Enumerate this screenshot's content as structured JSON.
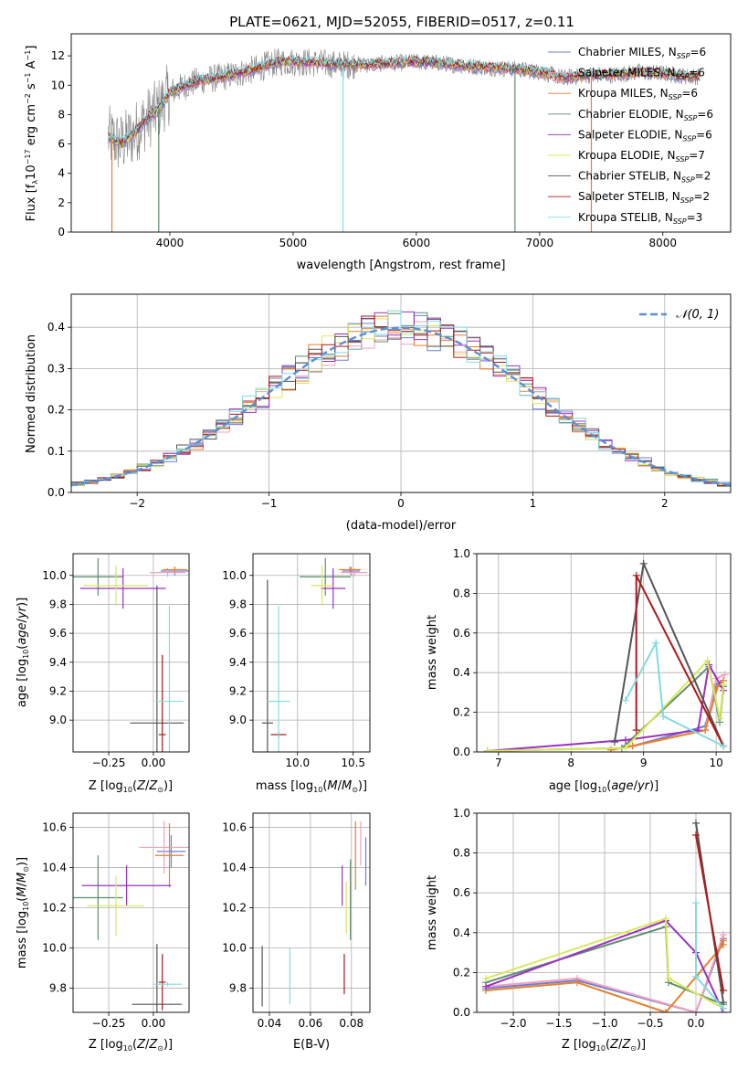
{
  "figure": {
    "title": "PLATE=0621, MJD=52055, FIBERID=0517, z=0.11"
  },
  "colors": {
    "Chabrier MILES": "#6f7fd0",
    "Salpeter MILES": "#f2a0c0",
    "Kroupa MILES": "#e8802c",
    "Chabrier ELODIE": "#5f8f6f",
    "Salpeter ELODIE": "#9b30c0",
    "Kroupa ELODIE": "#d8e85a",
    "Chabrier STELIB": "#555555",
    "Salpeter STELIB": "#b01818",
    "Kroupa STELIB": "#82dce0",
    "normal": "#5b8fd4"
  },
  "chart_data": [
    {
      "id": "spectrum",
      "type": "line",
      "title": "PLATE=0621, MJD=52055, FIBERID=0517, z=0.11",
      "xlabel": "wavelength [Angstrom, rest frame]",
      "ylabel": "Flux [fλ10⁻¹⁷ erg cm⁻² s⁻¹ A⁻¹]",
      "xlim": [
        3200,
        8550
      ],
      "ylim": [
        0,
        13.5
      ],
      "xticks": [
        4000,
        5000,
        6000,
        7000,
        8000
      ],
      "yticks": [
        0,
        2,
        4,
        6,
        8,
        10,
        12
      ],
      "grid": false,
      "legend_position": "right",
      "data_continuum": {
        "x": [
          3500,
          3600,
          3700,
          3800,
          3900,
          4000,
          4100,
          4200,
          4300,
          4400,
          4500,
          4600,
          4700,
          4800,
          4900,
          5000,
          5200,
          5400,
          5600,
          5800,
          6000,
          6200,
          6400,
          6600,
          6800,
          7000,
          7200,
          7400,
          7600,
          7800,
          8000,
          8200,
          8300
        ],
        "y": [
          6.5,
          6.0,
          6.6,
          7.6,
          8.3,
          9.5,
          9.9,
          10.2,
          10.4,
          10.5,
          10.7,
          10.9,
          11.1,
          11.4,
          11.6,
          11.6,
          11.5,
          11.4,
          11.4,
          11.5,
          11.6,
          11.5,
          11.3,
          11.2,
          11.1,
          10.9,
          10.5,
          10.7,
          10.7,
          10.9,
          10.8,
          10.6,
          10.6
        ]
      },
      "series": [
        {
          "name": "Chabrier MILES, N_SSP=6",
          "label": "Chabrier MILES, N",
          "sub": "SSP",
          "suffix": "=6",
          "color": "#6f7fd0"
        },
        {
          "name": "Salpeter MILES, N_SSP=6",
          "label": "Salpeter MILES, N",
          "sub": "SSP",
          "suffix": "=6",
          "color": "#f2a0c0"
        },
        {
          "name": "Kroupa MILES, N_SSP=6",
          "label": "Kroupa MILES, N",
          "sub": "SSP",
          "suffix": "=6",
          "color": "#e8802c"
        },
        {
          "name": "Chabrier ELODIE, N_SSP=6",
          "label": "Chabrier ELODIE, N",
          "sub": "SSP",
          "suffix": "=6",
          "color": "#5f8f6f"
        },
        {
          "name": "Salpeter ELODIE, N_SSP=6",
          "label": "Salpeter ELODIE, N",
          "sub": "SSP",
          "suffix": "=6",
          "color": "#9b30c0"
        },
        {
          "name": "Kroupa ELODIE, N_SSP=7",
          "label": "Kroupa ELODIE, N",
          "sub": "SSP",
          "suffix": "=7",
          "color": "#d8e85a"
        },
        {
          "name": "Chabrier STELIB, N_SSP=2",
          "label": "Chabrier STELIB, N",
          "sub": "SSP",
          "suffix": "=2",
          "color": "#555555"
        },
        {
          "name": "Salpeter STELIB, N_SSP=2",
          "label": "Salpeter STELIB, N",
          "sub": "SSP",
          "suffix": "=2",
          "color": "#b01818"
        },
        {
          "name": "Kroupa STELIB, N_SSP=3",
          "label": "Kroupa STELIB, N",
          "sub": "SSP",
          "suffix": "=3",
          "color": "#82dce0"
        }
      ]
    },
    {
      "id": "residuals",
      "type": "histogram",
      "xlabel": "(data-model)/error",
      "ylabel": "Normed distribution",
      "xlim": [
        -2.5,
        2.5
      ],
      "ylim": [
        0,
        0.48
      ],
      "xticks": [
        -2,
        -1,
        0,
        1,
        2
      ],
      "yticks": [
        0.0,
        0.1,
        0.2,
        0.3,
        0.4
      ],
      "grid": true,
      "legend": "𝒩(0, 1)",
      "legend_position": "top-right",
      "bin_width": 0.1,
      "bin_start": -2.5,
      "reference_curve": "N(0,1)"
    },
    {
      "id": "age_vs_Z",
      "type": "errorbar",
      "xlabel": "Z [log10(Z/Z⊙)]",
      "ylabel": "age  [log10(age/yr)]",
      "xlim": [
        -0.45,
        0.2
      ],
      "ylim": [
        8.78,
        10.15
      ],
      "xticks": [
        -0.25,
        0.0
      ],
      "yticks": [
        9.0,
        9.2,
        9.4,
        9.6,
        9.8,
        10.0
      ],
      "grid": true,
      "points": [
        {
          "series": "Chabrier MILES",
          "x": 0.12,
          "y": 10.03,
          "xerr": 0.08,
          "yerr": 0.03
        },
        {
          "series": "Salpeter MILES",
          "x": 0.08,
          "y": 10.02,
          "xerr": 0.1,
          "yerr": 0.03
        },
        {
          "series": "Kroupa MILES",
          "x": 0.12,
          "y": 10.04,
          "xerr": 0.07,
          "yerr": 0.02
        },
        {
          "series": "Chabrier ELODIE",
          "x": -0.31,
          "y": 9.99,
          "xerr": 0.14,
          "yerr": 0.13
        },
        {
          "series": "Salpeter ELODIE",
          "x": -0.17,
          "y": 9.91,
          "xerr": 0.24,
          "yerr": 0.14
        },
        {
          "series": "Kroupa ELODIE",
          "x": -0.21,
          "y": 9.93,
          "xerr": 0.18,
          "yerr": 0.14
        },
        {
          "series": "Chabrier STELIB",
          "x": 0.02,
          "y": 8.98,
          "xerr": 0.15,
          "yerr": 0.95
        },
        {
          "series": "Salpeter STELIB",
          "x": 0.05,
          "y": 8.9,
          "xerr": 0.02,
          "yerr": 0.55
        },
        {
          "series": "Kroupa STELIB",
          "x": 0.09,
          "y": 9.13,
          "xerr": 0.08,
          "yerr": 0.66
        }
      ]
    },
    {
      "id": "age_vs_mass",
      "type": "errorbar",
      "xlabel": "mass [log10(M/M⊙)]",
      "ylabel": "",
      "xlim": [
        9.6,
        10.65
      ],
      "ylim": [
        8.78,
        10.15
      ],
      "xticks": [
        10.0,
        10.5
      ],
      "yticks": [
        9.0,
        9.2,
        9.4,
        9.6,
        9.8,
        10.0
      ],
      "grid": true,
      "points": [
        {
          "series": "Chabrier MILES",
          "x": 10.48,
          "y": 10.03,
          "xerr": 0.08,
          "yerr": 0.03
        },
        {
          "series": "Salpeter MILES",
          "x": 10.51,
          "y": 10.02,
          "xerr": 0.12,
          "yerr": 0.03
        },
        {
          "series": "Kroupa MILES",
          "x": 10.47,
          "y": 10.04,
          "xerr": 0.1,
          "yerr": 0.02
        },
        {
          "series": "Chabrier ELODIE",
          "x": 10.25,
          "y": 9.99,
          "xerr": 0.23,
          "yerr": 0.13
        },
        {
          "series": "Salpeter ELODIE",
          "x": 10.32,
          "y": 9.91,
          "xerr": 0.11,
          "yerr": 0.14
        },
        {
          "series": "Kroupa ELODIE",
          "x": 10.22,
          "y": 9.93,
          "xerr": 0.1,
          "yerr": 0.14
        },
        {
          "series": "Chabrier STELIB",
          "x": 9.73,
          "y": 8.98,
          "xerr": 0.05,
          "yerr": 0.99
        },
        {
          "series": "Salpeter STELIB",
          "x": 9.83,
          "y": 8.9,
          "xerr": 0.07,
          "yerr": 0.02
        },
        {
          "series": "Kroupa STELIB",
          "x": 9.83,
          "y": 9.13,
          "xerr": 0.1,
          "yerr": 0.66
        }
      ]
    },
    {
      "id": "weight_vs_age",
      "type": "line",
      "xlabel": "age  [log10(age/yr)]",
      "ylabel": "mass weight",
      "xlim": [
        6.7,
        10.2
      ],
      "ylim": [
        0,
        1.0
      ],
      "xticks": [
        7,
        8,
        9,
        10
      ],
      "yticks": [
        0.0,
        0.2,
        0.4,
        0.6,
        0.8,
        1.0
      ],
      "grid": true,
      "series": [
        {
          "name": "Chabrier MILES",
          "x": [
            8.55,
            8.85,
            9.85,
            10.0,
            10.1
          ],
          "y": [
            0.01,
            0.03,
            0.13,
            0.34,
            0.36
          ]
        },
        {
          "name": "Salpeter MILES",
          "x": [
            8.55,
            8.85,
            9.85,
            10.0,
            10.12
          ],
          "y": [
            0.01,
            0.03,
            0.11,
            0.37,
            0.39
          ]
        },
        {
          "name": "Kroupa MILES",
          "x": [
            8.55,
            8.85,
            9.85,
            10.02,
            10.1
          ],
          "y": [
            0.01,
            0.03,
            0.11,
            0.33,
            0.36
          ]
        },
        {
          "name": "Chabrier ELODIE",
          "x": [
            6.85,
            8.7,
            9.9,
            10.05,
            10.1
          ],
          "y": [
            0.005,
            0.02,
            0.43,
            0.15,
            0.33
          ]
        },
        {
          "name": "Salpeter ELODIE",
          "x": [
            6.85,
            8.75,
            9.75,
            9.9,
            10.1
          ],
          "y": [
            0.005,
            0.06,
            0.11,
            0.44,
            0.31
          ]
        },
        {
          "name": "Kroupa ELODIE",
          "x": [
            6.85,
            8.75,
            9.88,
            10.05,
            10.1
          ],
          "y": [
            0.005,
            0.02,
            0.46,
            0.17,
            0.34
          ]
        },
        {
          "name": "Chabrier STELIB",
          "x": [
            8.6,
            9.0,
            10.1
          ],
          "y": [
            0.05,
            0.95,
            0.03
          ]
        },
        {
          "name": "Salpeter STELIB",
          "x": [
            8.9,
            8.9,
            10.1
          ],
          "y": [
            0.11,
            0.89,
            0.03
          ]
        },
        {
          "name": "Kroupa STELIB",
          "x": [
            8.75,
            9.17,
            9.27,
            10.1
          ],
          "y": [
            0.26,
            0.55,
            0.18,
            0.03
          ]
        }
      ]
    },
    {
      "id": "mass_vs_Z",
      "type": "errorbar",
      "xlabel": "Z [log10(Z/Z⊙)]",
      "ylabel": "mass [log10(M/M⊙)]",
      "xlim": [
        -0.45,
        0.2
      ],
      "ylim": [
        9.68,
        10.67
      ],
      "xticks": [
        -0.25,
        0.0
      ],
      "yticks": [
        9.8,
        10.0,
        10.2,
        10.4,
        10.6
      ],
      "grid": true,
      "points": [
        {
          "series": "Chabrier MILES",
          "x": 0.1,
          "y": 10.48,
          "xerr": 0.08,
          "yerr": 0.08
        },
        {
          "series": "Salpeter MILES",
          "x": 0.06,
          "y": 10.5,
          "xerr": 0.14,
          "yerr": 0.13
        },
        {
          "series": "Kroupa MILES",
          "x": 0.09,
          "y": 10.46,
          "xerr": 0.08,
          "yerr": 0.16
        },
        {
          "series": "Chabrier ELODIE",
          "x": -0.31,
          "y": 10.25,
          "xerr": 0.14,
          "yerr": 0.21
        },
        {
          "series": "Salpeter ELODIE",
          "x": -0.15,
          "y": 10.31,
          "xerr": 0.25,
          "yerr": 0.1
        },
        {
          "series": "Kroupa ELODIE",
          "x": -0.21,
          "y": 10.21,
          "xerr": 0.16,
          "yerr": 0.15
        },
        {
          "series": "Chabrier STELIB",
          "x": 0.02,
          "y": 9.72,
          "xerr": 0.14,
          "yerr": 0.3
        },
        {
          "series": "Salpeter STELIB",
          "x": 0.05,
          "y": 9.83,
          "xerr": 0.02,
          "yerr": 0.14
        },
        {
          "series": "Kroupa STELIB",
          "x": 0.08,
          "y": 9.82,
          "xerr": 0.08,
          "yerr": 0.01
        }
      ]
    },
    {
      "id": "mass_vs_ebv",
      "type": "errorbar",
      "xlabel": "E(B-V)",
      "ylabel": "",
      "xlim": [
        0.032,
        0.089
      ],
      "ylim": [
        9.68,
        10.67
      ],
      "xticks": [
        0.04,
        0.06,
        0.08
      ],
      "yticks": [
        9.8,
        10.0,
        10.2,
        10.4,
        10.6
      ],
      "grid": true,
      "points": [
        {
          "series": "Chabrier MILES",
          "x": 0.087,
          "y": 10.43,
          "xerr": 0.0,
          "yerr": 0.12
        },
        {
          "series": "Salpeter MILES",
          "x": 0.0845,
          "y": 10.52,
          "xerr": 0.0,
          "yerr": 0.11
        },
        {
          "series": "Kroupa MILES",
          "x": 0.082,
          "y": 10.46,
          "xerr": 0.0,
          "yerr": 0.17
        },
        {
          "series": "Chabrier ELODIE",
          "x": 0.0795,
          "y": 10.24,
          "xerr": 0.0,
          "yerr": 0.2
        },
        {
          "series": "Salpeter ELODIE",
          "x": 0.0755,
          "y": 10.31,
          "xerr": 0.0,
          "yerr": 0.1
        },
        {
          "series": "Kroupa ELODIE",
          "x": 0.0775,
          "y": 10.2,
          "xerr": 0.0,
          "yerr": 0.13
        },
        {
          "series": "Chabrier STELIB",
          "x": 0.0365,
          "y": 9.86,
          "xerr": 0.0,
          "yerr": 0.15
        },
        {
          "series": "Salpeter STELIB",
          "x": 0.0765,
          "y": 9.87,
          "xerr": 0.0,
          "yerr": 0.1
        },
        {
          "series": "Kroupa STELIB",
          "x": 0.05,
          "y": 9.86,
          "xerr": 0.0,
          "yerr": 0.14
        }
      ]
    },
    {
      "id": "weight_vs_Z",
      "type": "line",
      "xlabel": "Z [log10(Z/Z⊙)]",
      "ylabel": "mass weight",
      "xlim": [
        -2.4,
        0.38
      ],
      "ylim": [
        0,
        1.0
      ],
      "xticks": [
        -2.0,
        -1.5,
        -1.0,
        -0.5,
        0.0
      ],
      "yticks": [
        0.0,
        0.2,
        0.4,
        0.6,
        0.8,
        1.0
      ],
      "grid": true,
      "series": [
        {
          "name": "Chabrier MILES",
          "x": [
            -2.3,
            -1.3,
            0.0,
            0.3
          ],
          "y": [
            0.12,
            0.16,
            0.0,
            0.37
          ]
        },
        {
          "name": "Salpeter MILES",
          "x": [
            -2.3,
            -1.3,
            0.0,
            0.3
          ],
          "y": [
            0.13,
            0.17,
            0.0,
            0.39
          ]
        },
        {
          "name": "Kroupa MILES",
          "x": [
            -2.3,
            -1.3,
            -0.33,
            0.3,
            0.3
          ],
          "y": [
            0.11,
            0.15,
            0.0,
            0.34,
            0.36
          ]
        },
        {
          "name": "Chabrier ELODIE",
          "x": [
            -2.3,
            -0.33,
            -0.3,
            0.3
          ],
          "y": [
            0.15,
            0.43,
            0.15,
            0.04
          ]
        },
        {
          "name": "Salpeter ELODIE",
          "x": [
            -2.3,
            -0.33,
            0.0,
            0.3
          ],
          "y": [
            0.13,
            0.46,
            0.3,
            0.0
          ]
        },
        {
          "name": "Kroupa ELODIE",
          "x": [
            -2.3,
            -0.33,
            -0.3,
            0.3
          ],
          "y": [
            0.17,
            0.47,
            0.17,
            0.02
          ]
        },
        {
          "name": "Chabrier STELIB",
          "x": [
            0.0,
            0.3
          ],
          "y": [
            0.95,
            0.05
          ]
        },
        {
          "name": "Salpeter STELIB",
          "x": [
            0.0,
            0.3
          ],
          "y": [
            0.89,
            0.11
          ]
        },
        {
          "name": "Kroupa STELIB",
          "x": [
            0.0,
            0.0,
            0.3
          ],
          "y": [
            0.55,
            0.18,
            0.02
          ]
        }
      ]
    }
  ]
}
